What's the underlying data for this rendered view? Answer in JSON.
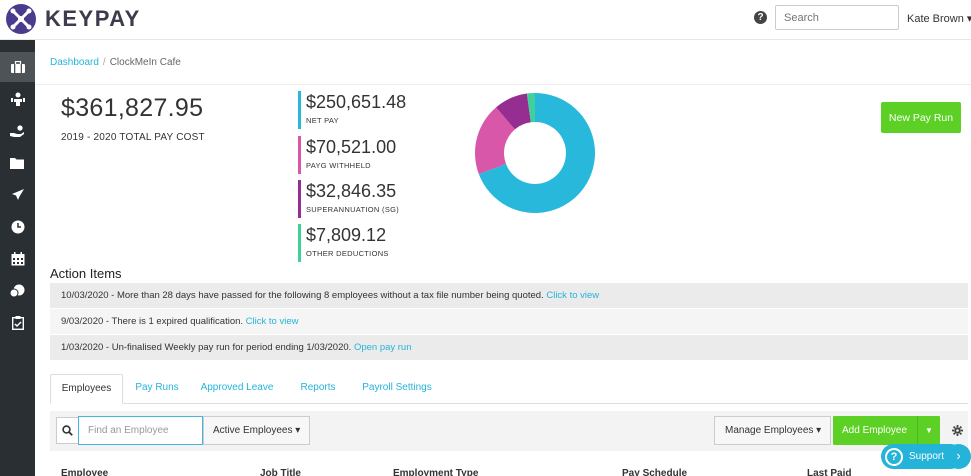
{
  "header": {
    "brand": "KEYPAY",
    "search_placeholder": "Search",
    "user_name": "Kate Brown ▾",
    "help_icon": "question-circle-icon"
  },
  "sidebar": {
    "items": [
      {
        "icon": "briefcase-icon",
        "active": true
      },
      {
        "icon": "people-icon",
        "active": false
      },
      {
        "icon": "hand-coin-icon",
        "active": false
      },
      {
        "icon": "folder-icon",
        "active": false
      },
      {
        "icon": "plane-icon",
        "active": false
      },
      {
        "icon": "clock-icon",
        "active": false
      },
      {
        "icon": "calendar-icon",
        "active": false
      },
      {
        "icon": "coins-icon",
        "active": false
      },
      {
        "icon": "clipboard-check-icon",
        "active": false
      }
    ]
  },
  "breadcrumb": {
    "root": "Dashboard",
    "separator": "/",
    "current": "ClockMeIn Cafe"
  },
  "summary": {
    "total_amount": "$361,827.95",
    "total_label": "2019 - 2020 TOTAL PAY COST",
    "stats": [
      {
        "amount": "$250,651.48",
        "label": "NET PAY",
        "color": "#27b8dc",
        "value": 250651.48
      },
      {
        "amount": "$70,521.00",
        "label": "PAYG WITHHELD",
        "color": "#d957a8",
        "value": 70521.0
      },
      {
        "amount": "$32,846.35",
        "label": "SUPERANNUATION (SG)",
        "color": "#962d90",
        "value": 32846.35
      },
      {
        "amount": "$7,809.12",
        "label": "OTHER DEDUCTIONS",
        "color": "#3fd19a",
        "value": 7809.12
      }
    ],
    "new_pay_run_label": "New Pay Run"
  },
  "actions": {
    "title": "Action Items",
    "items": [
      {
        "text": "10/03/2020 - More than 28 days have passed for the following 8 employees without a tax file number being quoted. ",
        "link": "Click to view"
      },
      {
        "text": "9/03/2020 - There is 1 expired qualification. ",
        "link": "Click to view"
      },
      {
        "text": "1/03/2020 - Un-finalised Weekly pay run for period ending 1/03/2020. ",
        "link": "Open pay run"
      }
    ]
  },
  "tabs": [
    "Employees",
    "Pay Runs",
    "Approved Leave",
    "Reports",
    "Payroll Settings"
  ],
  "toolbar": {
    "find_placeholder": "Find an Employee",
    "filter_label": "Active Employees ▾",
    "manage_label": "Manage Employees ▾",
    "add_label": "Add Employee",
    "add_caret": "▼"
  },
  "table": {
    "columns": [
      "Employee",
      "Job Title",
      "Employment Type",
      "Pay Schedule",
      "Last Paid"
    ]
  },
  "support": {
    "label": "Support",
    "chevron": "›"
  }
}
